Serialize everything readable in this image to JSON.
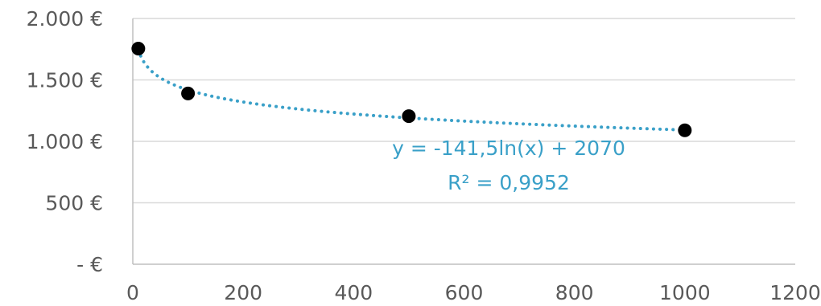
{
  "chart_data": {
    "type": "scatter",
    "x": [
      10,
      100,
      500,
      1000
    ],
    "y": [
      1755,
      1390,
      1205,
      1090
    ],
    "xlim": [
      0,
      1200
    ],
    "ylim": [
      0,
      2000
    ],
    "x_ticks": [
      "0",
      "200",
      "400",
      "600",
      "800",
      "1000",
      "1200"
    ],
    "y_ticks": [
      "-   €",
      "500 €",
      "1.000 €",
      "1.500 €",
      "2.000 €"
    ],
    "grid": "horizontal",
    "marker_color": "#000000",
    "trendline": {
      "type": "logarithmic",
      "a": -141.5,
      "b": 2070,
      "equation": "y = -141,5ln(x) + 2070",
      "r2": "R² = 0,9952",
      "color": "#3aa0c8",
      "style": "dotted"
    }
  }
}
